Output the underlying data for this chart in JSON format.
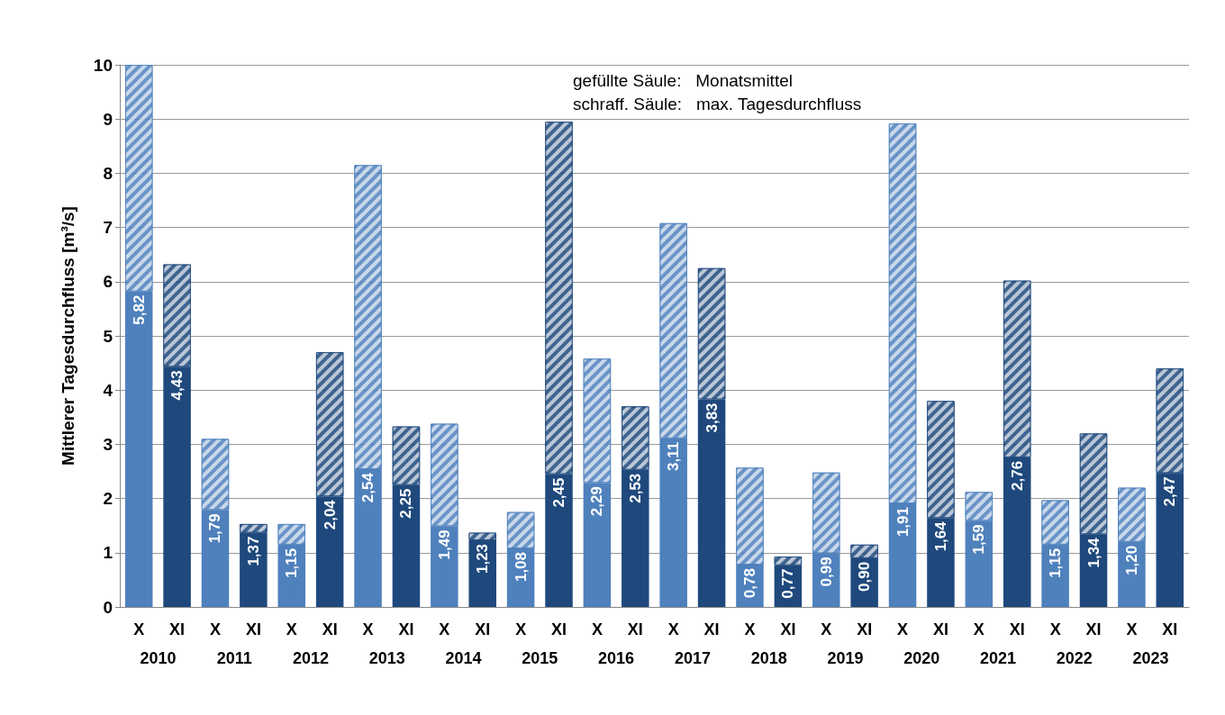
{
  "chart_data": {
    "type": "bar",
    "stacked": true,
    "ylabel": "Mittlerer Tagesdurchfluss [m³/s]",
    "ylim": [
      0,
      10
    ],
    "yticks": [
      0,
      1,
      2,
      3,
      4,
      5,
      6,
      7,
      8,
      9,
      10
    ],
    "grid": "y",
    "categories": [
      "X",
      "XI",
      "X",
      "XI",
      "X",
      "XI",
      "X",
      "XI",
      "X",
      "XI",
      "X",
      "XI",
      "X",
      "XI",
      "X",
      "XI",
      "X",
      "XI",
      "X",
      "XI",
      "X",
      "XI",
      "X",
      "XI",
      "X",
      "XI",
      "X",
      "XI"
    ],
    "annotations": [
      "gefüllte Säule:   Monatsmittel",
      "schraff. Säule:   max. Tagesdurchfluss",
      "2010",
      "2011",
      "2012",
      "2013",
      "2014",
      "2015",
      "2016",
      "2017",
      "2018",
      "2019",
      "2020",
      "2021",
      "2022",
      "2023"
    ],
    "series": [
      {
        "colors": [
          "#4f81bd",
          "#1f497d",
          "#4f81bd",
          "#1f497d",
          "#4f81bd",
          "#1f497d",
          "#4f81bd",
          "#1f497d",
          "#4f81bd",
          "#1f497d",
          "#4f81bd",
          "#1f497d",
          "#4f81bd",
          "#1f497d",
          "#4f81bd",
          "#1f497d",
          "#4f81bd",
          "#1f497d",
          "#4f81bd",
          "#1f497d",
          "#4f81bd",
          "#1f497d",
          "#4f81bd",
          "#1f497d",
          "#4f81bd",
          "#1f497d",
          "#4f81bd",
          "#1f497d"
        ],
        "values": [
          5.82,
          4.43,
          1.79,
          1.37,
          1.15,
          2.04,
          2.54,
          2.25,
          1.49,
          1.23,
          1.08,
          2.45,
          2.29,
          2.53,
          3.11,
          3.83,
          0.78,
          0.77,
          0.99,
          0.9,
          1.91,
          1.64,
          1.59,
          2.76,
          1.15,
          1.34,
          1.2,
          2.47
        ],
        "value_labels": [
          "5,82",
          "4,43",
          "1,79",
          "1,37",
          "1,15",
          "2,04",
          "2,54",
          "2,25",
          "1,49",
          "1,23",
          "1,08",
          "2,45",
          "2,29",
          "2,53",
          "3,11",
          "3,83",
          "0,78",
          "0,77",
          "0,99",
          "0,90",
          "1,91",
          "1,64",
          "1,59",
          "2,76",
          "1,15",
          "1,34",
          "1,20",
          "2,47"
        ]
      },
      {
        "colors": [
          "#4f81bd",
          "#1f497d",
          "#4f81bd",
          "#1f497d",
          "#4f81bd",
          "#1f497d",
          "#4f81bd",
          "#1f497d",
          "#4f81bd",
          "#1f497d",
          "#4f81bd",
          "#1f497d",
          "#4f81bd",
          "#1f497d",
          "#4f81bd",
          "#1f497d",
          "#4f81bd",
          "#1f497d",
          "#4f81bd",
          "#1f497d",
          "#4f81bd",
          "#1f497d",
          "#4f81bd",
          "#1f497d",
          "#4f81bd",
          "#1f497d",
          "#4f81bd",
          "#1f497d"
        ],
        "values": [
          4.18,
          1.89,
          1.31,
          0.16,
          0.38,
          2.66,
          5.61,
          1.08,
          1.89,
          0.14,
          0.67,
          6.5,
          2.29,
          1.17,
          3.97,
          2.42,
          1.79,
          0.16,
          1.49,
          0.25,
          7.01,
          2.16,
          0.53,
          3.26,
          0.82,
          1.86,
          1.0,
          1.93
        ]
      }
    ]
  }
}
